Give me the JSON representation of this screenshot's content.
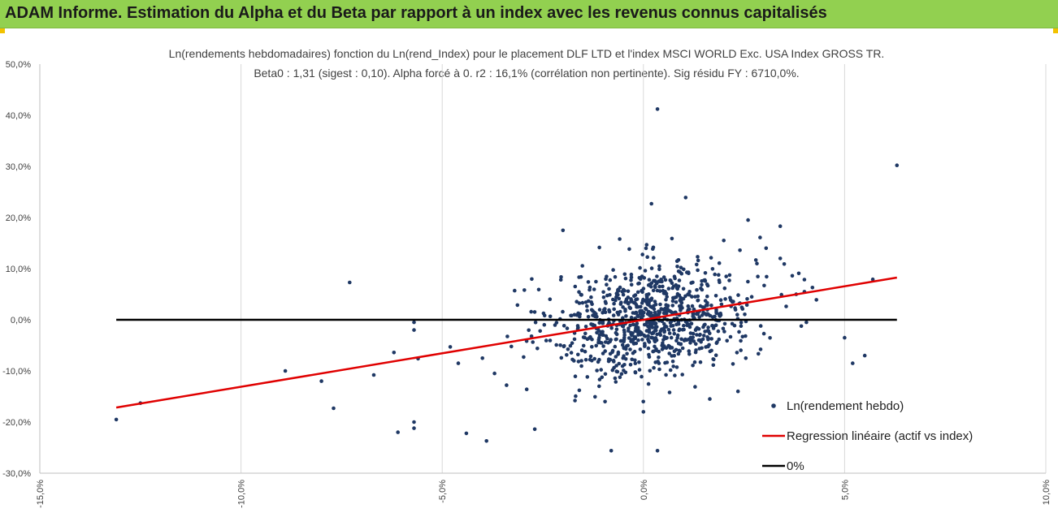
{
  "header": {
    "title": "ADAM Informe. Estimation du Alpha et du Beta par rapport à un index avec les revenus connus capitalisés"
  },
  "colors": {
    "header_bg": "#92d050",
    "points": "#1f3864",
    "regression": "#e00000",
    "zero_line": "#000000",
    "grid": "#d9d9d9"
  },
  "chart_data": {
    "type": "scatter",
    "title_lines": [
      "Ln(rendements hebdomadaires) fonction du Ln(rend_Index) pour le placement DLF LTD et l'index MSCI WORLD Exc. USA Index GROSS TR.",
      "Beta0 : 1,31 (sigest : 0,10). Alpha forcé à 0. r2 : 16,1% (corrélation non pertinente). Sig résidu FY : 6710,0%."
    ],
    "xlim": [
      -15,
      10
    ],
    "ylim": [
      -30,
      50
    ],
    "x_ticks": [
      -15,
      -10,
      -5,
      0,
      5,
      10
    ],
    "y_ticks": [
      -30,
      -20,
      -10,
      0,
      10,
      20,
      30,
      40,
      50
    ],
    "x_tick_labels": [
      "-15,0%",
      "-10,0%",
      "-5,0%",
      "0,0%",
      "5,0%",
      "10,0%"
    ],
    "y_tick_labels": [
      "-30,0%",
      "-20,0%",
      "-10,0%",
      "0,0%",
      "10,0%",
      "20,0%",
      "30,0%",
      "40,0%",
      "50,0%"
    ],
    "grid": "vertical",
    "legend_position": "bottom-right",
    "legend": [
      {
        "label": "Ln(rendement hebdo)",
        "kind": "marker"
      },
      {
        "label": "Regression linéaire (actif vs index)",
        "kind": "line"
      },
      {
        "label": "0%",
        "kind": "line"
      }
    ],
    "regression": {
      "slope": 1.31,
      "intercept": 0,
      "x": [
        -13.1,
        6.3
      ]
    },
    "zero_line": {
      "y": 0,
      "x": [
        -13.1,
        6.3
      ]
    },
    "outlier_points": [
      [
        -13.1,
        -19.5
      ],
      [
        -12.5,
        -16.3
      ],
      [
        -8.9,
        -10
      ],
      [
        -8,
        -12
      ],
      [
        -7.7,
        -17.3
      ],
      [
        -7.3,
        7.3
      ],
      [
        -6.7,
        -10.8
      ],
      [
        -6.2,
        -6.4
      ],
      [
        -6.1,
        -22
      ],
      [
        -5.7,
        -21.2
      ],
      [
        -5.7,
        -20
      ],
      [
        -5.6,
        -7.6
      ],
      [
        -5.7,
        -0.5
      ],
      [
        -5.7,
        -2
      ],
      [
        -4.8,
        -5.3
      ],
      [
        -4.6,
        -8.5
      ],
      [
        -4.4,
        -22.2
      ],
      [
        -3.9,
        -23.7
      ],
      [
        -2.7,
        -21.4
      ],
      [
        -2,
        17.5
      ],
      [
        0.2,
        22.7
      ],
      [
        0.35,
        41.2
      ],
      [
        1.05,
        23.9
      ],
      [
        2.6,
        19.5
      ],
      [
        3.4,
        18.3
      ],
      [
        2.9,
        16.1
      ],
      [
        0.35,
        -25.6
      ],
      [
        0,
        -18
      ],
      [
        6.3,
        30.2
      ],
      [
        5.7,
        7.9
      ],
      [
        5.5,
        -7
      ],
      [
        5.2,
        -8.5
      ],
      [
        5,
        -3.5
      ],
      [
        4.3,
        3.9
      ],
      [
        4.05,
        -0.5
      ],
      [
        4.2,
        6.3
      ],
      [
        4,
        5.5
      ],
      [
        3.7,
        8.6
      ],
      [
        3.4,
        12
      ],
      [
        3.5,
        10.9
      ],
      [
        2.4,
        13.6
      ],
      [
        -0.8,
        -25.6
      ],
      [
        -1.7,
        -15.8
      ],
      [
        0.65,
        -14.2
      ],
      [
        1.65,
        -15.5
      ],
      [
        2.35,
        -14
      ],
      [
        3.05,
        14
      ],
      [
        -3.2,
        5.7
      ],
      [
        -2.6,
        5.9
      ],
      [
        -3.4,
        -12.8
      ],
      [
        -2.9,
        -13.6
      ],
      [
        -3.7,
        -10.5
      ],
      [
        -4,
        -7.5
      ],
      [
        -1.1,
        -13
      ]
    ],
    "cluster": {
      "count": 900,
      "x_mean": 0.25,
      "x_sd": 1.25,
      "y_noise_sd": 5.4,
      "x_range": [
        -3.8,
        4
      ],
      "y_range": [
        -16,
        16
      ]
    }
  }
}
